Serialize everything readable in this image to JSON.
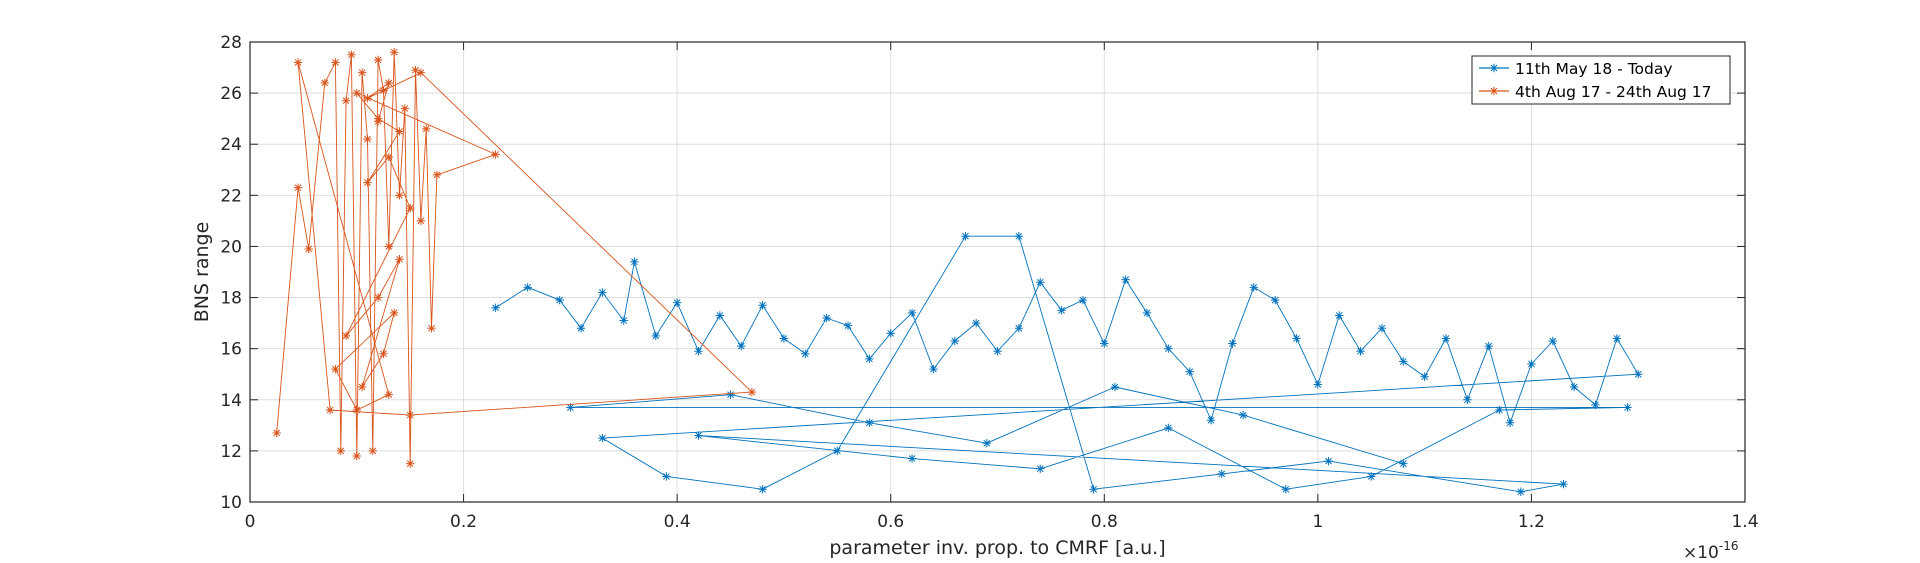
{
  "chart_data": {
    "type": "line",
    "xlabel": "parameter inv. prop. to CMRF [a.u.]",
    "ylabel": "BNS range",
    "x_exponent_base": "×10",
    "x_exponent_power": "-16",
    "xlim": [
      0,
      1.4
    ],
    "ylim": [
      10,
      28
    ],
    "x_ticks": [
      0,
      0.2,
      0.4,
      0.6,
      0.8,
      1,
      1.2,
      1.4
    ],
    "x_tick_labels": [
      "0",
      "0.2",
      "0.4",
      "0.6",
      "0.8",
      "1",
      "1.2",
      "1.4"
    ],
    "y_ticks": [
      10,
      12,
      14,
      16,
      18,
      20,
      22,
      24,
      26,
      28
    ],
    "y_tick_labels": [
      "10",
      "12",
      "14",
      "16",
      "18",
      "20",
      "22",
      "24",
      "26",
      "28"
    ],
    "grid": true,
    "legend_position": "top-right",
    "marker": "asterisk",
    "series": [
      {
        "name": "11th May 18 - Today",
        "color": "#0072BD",
        "x": [
          0.23,
          0.26,
          0.29,
          0.31,
          0.33,
          0.35,
          0.36,
          0.38,
          0.4,
          0.42,
          0.44,
          0.46,
          0.48,
          0.5,
          0.52,
          0.54,
          0.56,
          0.58,
          0.6,
          0.62,
          0.64,
          0.66,
          0.68,
          0.7,
          0.72,
          0.74,
          0.76,
          0.78,
          0.8,
          0.82,
          0.84,
          0.86,
          0.88,
          0.9,
          0.92,
          0.94,
          0.96,
          0.98,
          1.0,
          1.02,
          1.04,
          1.06,
          1.08,
          1.1,
          1.12,
          1.14,
          1.16,
          1.18,
          1.2,
          1.22,
          1.24,
          1.26,
          1.28,
          1.3,
          0.33,
          0.39,
          0.48,
          0.55,
          0.67,
          0.72,
          0.79,
          0.91,
          1.01,
          1.19,
          1.23,
          0.42,
          0.62,
          0.74,
          0.86,
          0.97,
          1.05,
          1.17,
          1.29,
          0.3,
          0.45,
          0.58,
          0.69,
          0.81,
          0.93,
          1.08
        ],
        "y": [
          17.6,
          18.4,
          17.9,
          16.8,
          18.2,
          17.1,
          19.4,
          16.5,
          17.8,
          15.9,
          17.3,
          16.1,
          17.7,
          16.4,
          15.8,
          17.2,
          16.9,
          15.6,
          16.6,
          17.4,
          15.2,
          16.3,
          17.0,
          15.9,
          16.8,
          18.6,
          17.5,
          17.9,
          16.2,
          18.7,
          17.4,
          16.0,
          15.1,
          13.2,
          16.2,
          18.4,
          17.9,
          16.4,
          14.6,
          17.3,
          15.9,
          16.8,
          15.5,
          14.9,
          16.4,
          14.0,
          16.1,
          13.1,
          15.4,
          16.3,
          14.5,
          13.8,
          16.4,
          15.0,
          12.5,
          11.0,
          10.5,
          12.0,
          20.4,
          20.4,
          10.5,
          11.1,
          11.6,
          10.4,
          10.7,
          12.6,
          11.7,
          11.3,
          12.9,
          10.5,
          11.0,
          13.6,
          13.7,
          13.7,
          14.2,
          13.1,
          12.3,
          14.5,
          13.4,
          11.5
        ]
      },
      {
        "name": "4th Aug 17 - 24th Aug 17",
        "color": "#D95319",
        "x": [
          0.025,
          0.045,
          0.055,
          0.07,
          0.08,
          0.085,
          0.09,
          0.095,
          0.1,
          0.105,
          0.11,
          0.115,
          0.12,
          0.125,
          0.13,
          0.135,
          0.14,
          0.145,
          0.15,
          0.155,
          0.16,
          0.165,
          0.17,
          0.175,
          0.23,
          0.1,
          0.12,
          0.14,
          0.11,
          0.13,
          0.15,
          0.09,
          0.12,
          0.14,
          0.105,
          0.125,
          0.135,
          0.08,
          0.1,
          0.13,
          0.045,
          0.075,
          0.15,
          0.47,
          0.16,
          0.11,
          0.13,
          0.12
        ],
        "y": [
          12.7,
          22.3,
          19.9,
          26.4,
          27.2,
          12.0,
          25.7,
          27.5,
          11.8,
          26.8,
          24.2,
          12.0,
          27.3,
          26.1,
          20.0,
          27.6,
          22.0,
          25.4,
          11.5,
          26.9,
          21.0,
          24.6,
          16.8,
          22.8,
          23.6,
          26.0,
          25.0,
          24.5,
          22.5,
          23.5,
          21.5,
          16.5,
          18.0,
          19.5,
          14.5,
          15.8,
          17.4,
          15.2,
          13.6,
          14.2,
          27.2,
          13.6,
          13.4,
          14.3,
          26.8,
          25.8,
          26.4,
          24.9
        ]
      }
    ]
  }
}
